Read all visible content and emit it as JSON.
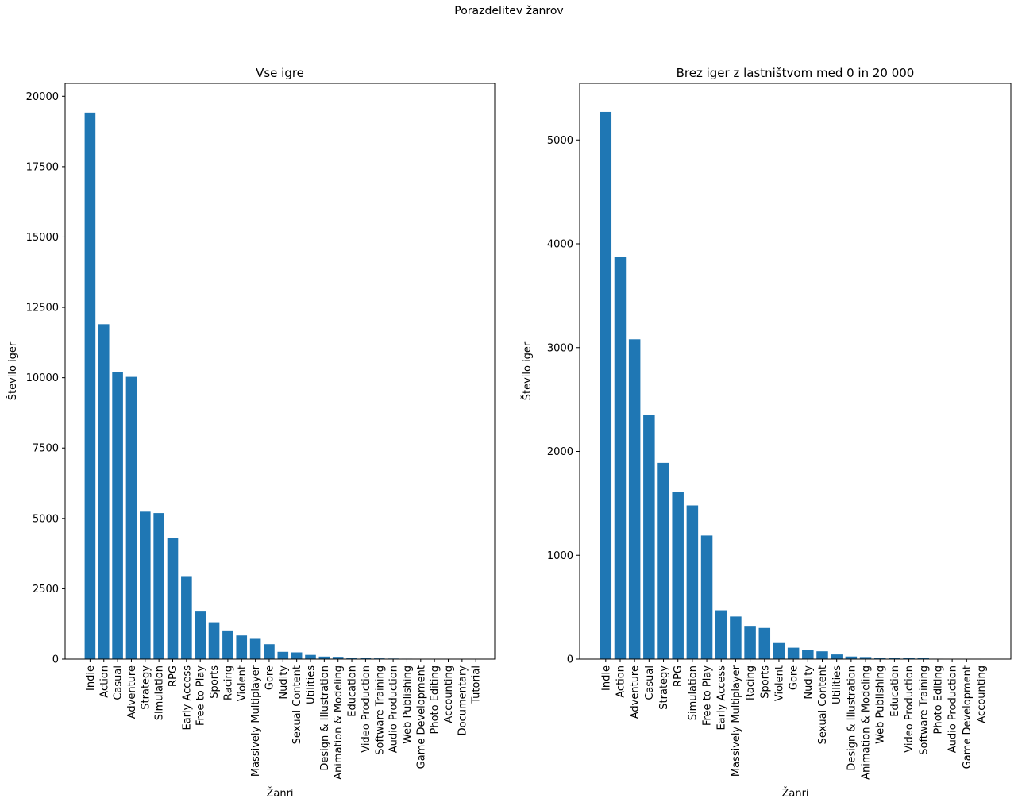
{
  "figure": {
    "suptitle": "Porazdelitev žanrov"
  },
  "colors": {
    "bar": "#1f77b4",
    "axis": "#000000",
    "background": "#ffffff"
  },
  "chart_data": [
    {
      "type": "bar",
      "title": "Vse igre",
      "xlabel": "Žanri",
      "ylabel": "Število iger",
      "ylim": [
        0,
        20460
      ],
      "yticks": [
        0,
        2500,
        5000,
        7500,
        10000,
        12500,
        15000,
        17500,
        20000
      ],
      "categories": [
        "Indie",
        "Action",
        "Casual",
        "Adventure",
        "Strategy",
        "Simulation",
        "RPG",
        "Early Access",
        "Free to Play",
        "Sports",
        "Racing",
        "Violent",
        "Massively Multiplayer",
        "Gore",
        "Nudity",
        "Sexual Content",
        "Utilities",
        "Design & Illustration",
        "Animation & Modeling",
        "Education",
        "Video Production",
        "Software Training",
        "Audio Production",
        "Web Publishing",
        "Game Development",
        "Photo Editing",
        "Accounting",
        "Documentary",
        "Tutorial"
      ],
      "values": [
        19420,
        11900,
        10210,
        10030,
        5240,
        5190,
        4310,
        2950,
        1690,
        1310,
        1020,
        840,
        720,
        530,
        260,
        240,
        150,
        90,
        80,
        50,
        30,
        25,
        20,
        15,
        10,
        8,
        5,
        2,
        1
      ]
    },
    {
      "type": "bar",
      "title": "Brez iger z lastništvom med 0 in 20 000",
      "xlabel": "Žanri",
      "ylabel": "Število iger",
      "ylim": [
        0,
        5545
      ],
      "yticks": [
        0,
        1000,
        2000,
        3000,
        4000,
        5000
      ],
      "categories": [
        "Indie",
        "Action",
        "Adventure",
        "Casual",
        "Strategy",
        "RPG",
        "Simulation",
        "Free to Play",
        "Early Access",
        "Massively Multiplayer",
        "Racing",
        "Sports",
        "Violent",
        "Gore",
        "Nudity",
        "Sexual Content",
        "Utilities",
        "Design & Illustration",
        "Animation & Modeling",
        "Web Publishing",
        "Education",
        "Video Production",
        "Software Training",
        "Photo Editing",
        "Audio Production",
        "Game Development",
        "Accounting"
      ],
      "values": [
        5270,
        3870,
        3080,
        2350,
        1890,
        1610,
        1480,
        1190,
        470,
        410,
        320,
        300,
        155,
        110,
        85,
        75,
        45,
        25,
        20,
        15,
        12,
        10,
        8,
        4,
        3,
        2,
        1
      ]
    }
  ]
}
